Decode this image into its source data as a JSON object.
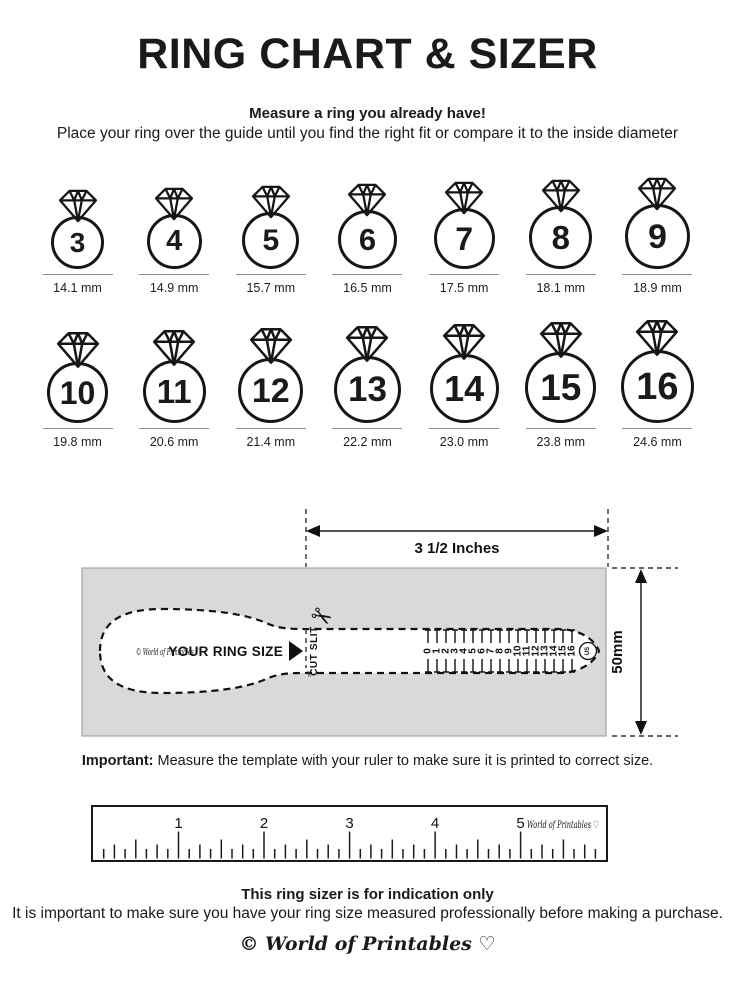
{
  "colors": {
    "ink": "#1a1a1a",
    "template_box": "#d9d9d9",
    "underline": "#8d8d8d"
  },
  "page": {
    "title": "RING CHART & SIZER",
    "intro_bold": "Measure a ring you already have!",
    "intro_text": "Place your ring over the guide until you find the right fit or compare it to the inside diameter"
  },
  "ring_chart": {
    "rows": [
      {
        "rings": [
          {
            "size": "3",
            "diameter": "14.1 mm"
          },
          {
            "size": "4",
            "diameter": "14.9 mm"
          },
          {
            "size": "5",
            "diameter": "15.7 mm"
          },
          {
            "size": "6",
            "diameter": "16.5 mm"
          },
          {
            "size": "7",
            "diameter": "17.5 mm"
          },
          {
            "size": "8",
            "diameter": "18.1 mm"
          },
          {
            "size": "9",
            "diameter": "18.9 mm"
          }
        ]
      },
      {
        "rings": [
          {
            "size": "10",
            "diameter": "19.8 mm"
          },
          {
            "size": "11",
            "diameter": "20.6 mm"
          },
          {
            "size": "12",
            "diameter": "21.4 mm"
          },
          {
            "size": "13",
            "diameter": "22.2 mm"
          },
          {
            "size": "14",
            "diameter": "23.0 mm"
          },
          {
            "size": "15",
            "diameter": "23.8 mm"
          },
          {
            "size": "16",
            "diameter": "24.6 mm"
          }
        ]
      }
    ]
  },
  "sizer": {
    "width_label": "3 1/2 Inches",
    "height_label": "50mm",
    "brand": "© World of Printables ♡",
    "your_ring_size": "YOUR RING SIZE",
    "cut_slit": "CUT SLIT",
    "scale_numbers": [
      "0",
      "1",
      "2",
      "3",
      "4",
      "5",
      "6",
      "7",
      "8",
      "9",
      "10",
      "11",
      "12",
      "13",
      "14",
      "15",
      "16"
    ],
    "unit_badge": "US",
    "scissors_icon": "✂"
  },
  "important": {
    "label": "Important:",
    "text": " Measure the template with your ruler to make sure it is printed to correct size."
  },
  "ruler": {
    "numbers": [
      "1",
      "2",
      "3",
      "4",
      "5"
    ],
    "brand": "World of Printables ♡"
  },
  "footer": {
    "bold": "This ring sizer is for indication only",
    "text": "It is important to make sure you have your ring size measured professionally before making a purchase.",
    "brand": "© World of Printables ♡"
  }
}
